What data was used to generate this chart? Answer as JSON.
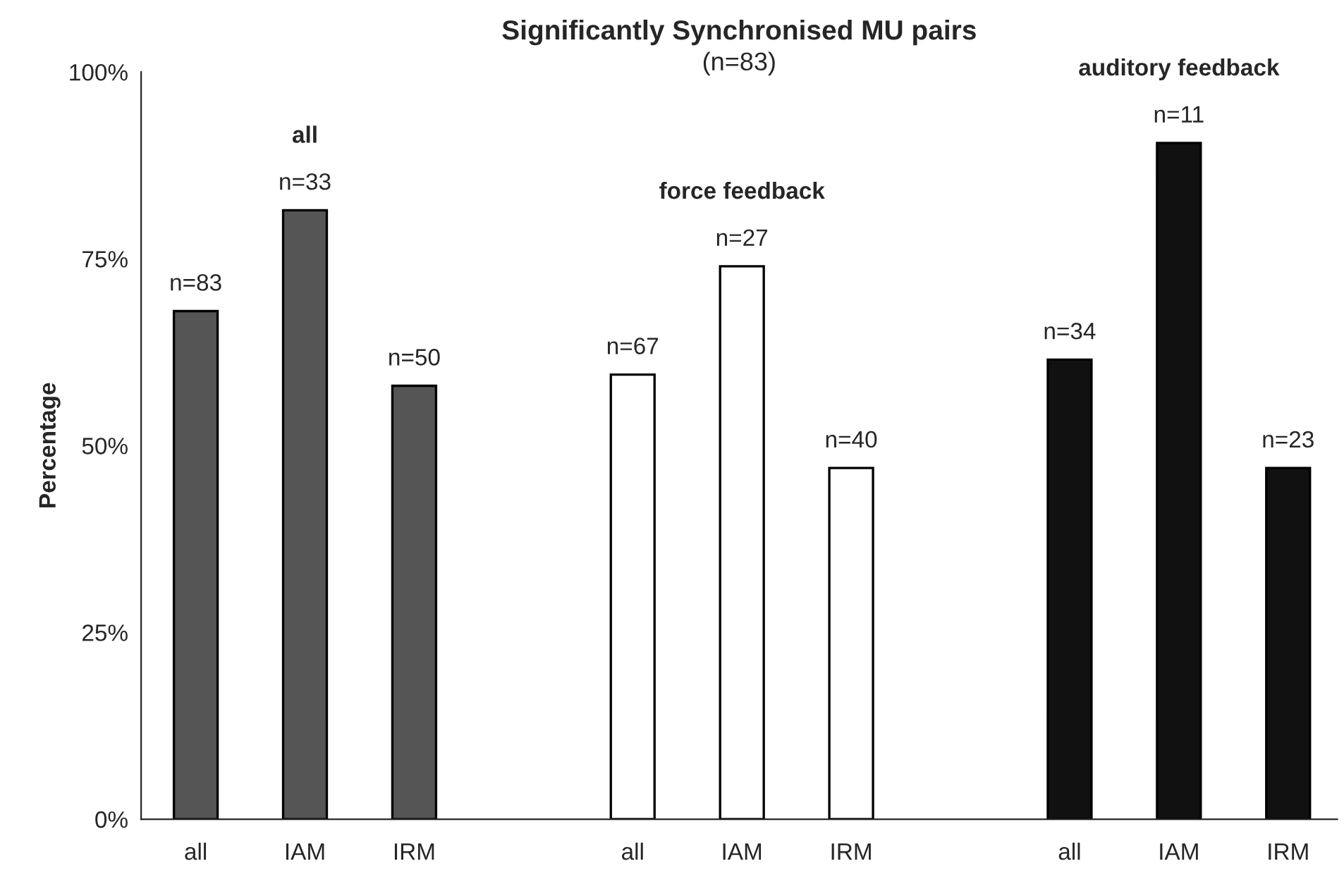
{
  "chart_data": {
    "type": "bar",
    "title": "Significantly Synchronised MU pairs",
    "subtitle": "(n=83)",
    "ylabel": "Percentage",
    "categories": [
      "all",
      "IAM",
      "IRM",
      null,
      "all",
      "IAM",
      "IRM",
      null,
      "all",
      "IAM",
      "IRM"
    ],
    "series": [
      {
        "color": "#555555",
        "values": [
          68,
          81.5,
          58,
          null,
          null,
          null,
          null,
          null,
          null,
          null,
          null
        ]
      },
      {
        "color": "#ffffff",
        "values": [
          null,
          null,
          null,
          null,
          59.5,
          74,
          47,
          null,
          null,
          null,
          null
        ]
      },
      {
        "color": "#111111",
        "values": [
          null,
          null,
          null,
          null,
          null,
          null,
          null,
          null,
          61.5,
          90.5,
          47
        ]
      }
    ],
    "annotations": [
      "n=83",
      "n=33",
      "n=50",
      "n=67",
      "n=27",
      "n=40",
      "n=34",
      "n=11",
      "n=23",
      "all",
      "force feedback",
      "auditory feedback"
    ],
    "ylim": [
      0,
      100
    ],
    "yticks": [
      {
        "value": 0,
        "label": "0%"
      },
      {
        "value": 25,
        "label": "25%"
      },
      {
        "value": 50,
        "label": "50%"
      },
      {
        "value": 75,
        "label": "75%"
      },
      {
        "value": 100,
        "label": "100%"
      }
    ],
    "grid": false,
    "legend": false
  }
}
